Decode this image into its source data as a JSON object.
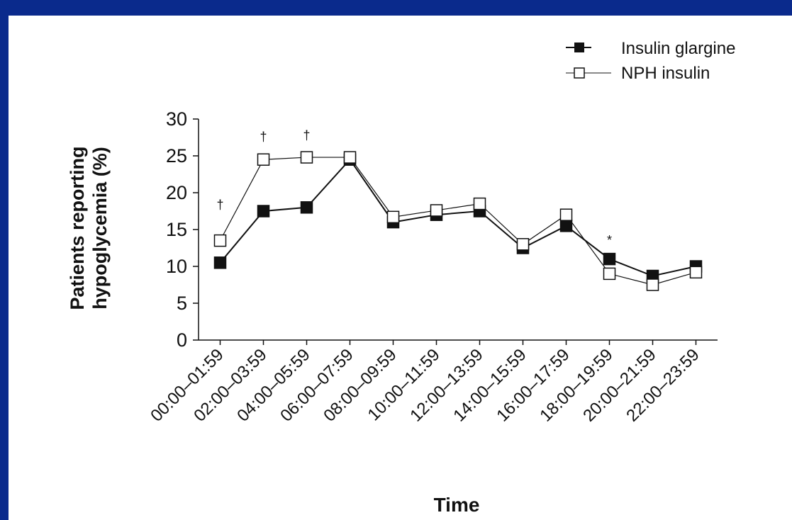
{
  "colors": {
    "background": "#0a2a8c",
    "panel": "#ffffff",
    "ink": "#111111"
  },
  "chart_data": {
    "type": "line",
    "title": "",
    "xlabel": "Time",
    "ylabel_lines": [
      "Patients reporting",
      "hypoglycemia (%)"
    ],
    "ylim": [
      0,
      30
    ],
    "yticks": [
      0,
      5,
      10,
      15,
      20,
      25,
      30
    ],
    "categories": [
      "00:00–01:59",
      "02:00–03:59",
      "04:00–05:59",
      "06:00–07:59",
      "08:00–09:59",
      "10:00–11:59",
      "12:00–13:59",
      "14:00–15:59",
      "16:00–17:59",
      "18:00–19:59",
      "20:00–21:59",
      "22:00–23:59"
    ],
    "series": [
      {
        "name": "Insulin glargine",
        "marker": "filled-square",
        "values": [
          10.5,
          17.5,
          18.0,
          24.5,
          16.0,
          17.0,
          17.5,
          12.5,
          15.5,
          11.0,
          8.7,
          10.0
        ]
      },
      {
        "name": "NPH insulin",
        "marker": "open-square",
        "values": [
          13.5,
          24.5,
          24.8,
          24.8,
          16.7,
          17.6,
          18.5,
          13.0,
          17.0,
          9.0,
          7.5,
          9.2
        ]
      }
    ],
    "annotations": [
      {
        "category_index": 0,
        "text": "†",
        "value": 17.8
      },
      {
        "category_index": 1,
        "text": "†",
        "value": 27.0
      },
      {
        "category_index": 2,
        "text": "†",
        "value": 27.2
      },
      {
        "category_index": 9,
        "text": "*",
        "value": 13.0
      }
    ],
    "legend_position": "top-right"
  }
}
